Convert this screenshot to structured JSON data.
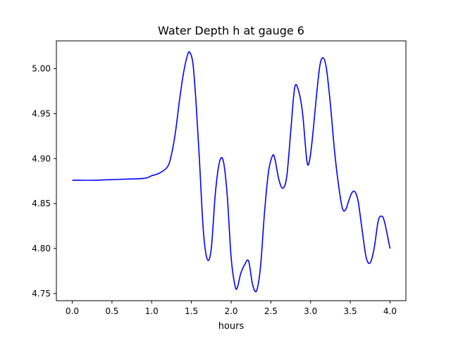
{
  "chart_data": {
    "type": "line",
    "title": "Water Depth h at gauge 6",
    "xlabel": "hours",
    "ylabel": "",
    "xlim": [
      -0.2,
      4.2
    ],
    "ylim": [
      4.742,
      5.031
    ],
    "grid": false,
    "legend": "none",
    "x_ticks": [
      0.0,
      0.5,
      1.0,
      1.5,
      2.0,
      2.5,
      3.0,
      3.5,
      4.0
    ],
    "x_tick_labels": [
      "0.0",
      "0.5",
      "1.0",
      "1.5",
      "2.0",
      "2.5",
      "3.0",
      "3.5",
      "4.0"
    ],
    "y_ticks": [
      4.75,
      4.8,
      4.85,
      4.9,
      4.95,
      5.0
    ],
    "y_tick_labels": [
      "4.75",
      "4.80",
      "4.85",
      "4.90",
      "4.95",
      "5.00"
    ],
    "series": [
      {
        "color": "#0000ff",
        "x": [
          0.0,
          0.3,
          0.6,
          0.9,
          1.0,
          1.1,
          1.2,
          1.25,
          1.3,
          1.35,
          1.4,
          1.45,
          1.48,
          1.52,
          1.56,
          1.6,
          1.65,
          1.7,
          1.75,
          1.8,
          1.85,
          1.9,
          1.95,
          2.0,
          2.05,
          2.08,
          2.12,
          2.17,
          2.22,
          2.27,
          2.32,
          2.37,
          2.42,
          2.47,
          2.52,
          2.55,
          2.6,
          2.65,
          2.7,
          2.75,
          2.8,
          2.85,
          2.9,
          2.95,
          2.98,
          3.02,
          3.08,
          3.12,
          3.16,
          3.2,
          3.25,
          3.3,
          3.35,
          3.4,
          3.44,
          3.48,
          3.52,
          3.56,
          3.6,
          3.65,
          3.7,
          3.75,
          3.8,
          3.85,
          3.89,
          3.93,
          4.0
        ],
        "y": [
          4.876,
          4.876,
          4.877,
          4.878,
          4.881,
          4.884,
          4.891,
          4.905,
          4.93,
          4.965,
          4.995,
          5.015,
          5.018,
          5.005,
          4.96,
          4.9,
          4.82,
          4.788,
          4.8,
          4.86,
          4.895,
          4.898,
          4.86,
          4.79,
          4.758,
          4.757,
          4.772,
          4.782,
          4.786,
          4.76,
          4.753,
          4.78,
          4.84,
          4.885,
          4.903,
          4.9,
          4.877,
          4.867,
          4.88,
          4.93,
          4.979,
          4.975,
          4.95,
          4.9,
          4.895,
          4.92,
          4.975,
          5.005,
          5.012,
          5.0,
          4.96,
          4.91,
          4.872,
          4.845,
          4.843,
          4.853,
          4.862,
          4.863,
          4.852,
          4.82,
          4.79,
          4.784,
          4.8,
          4.83,
          4.836,
          4.83,
          4.8
        ]
      }
    ]
  }
}
